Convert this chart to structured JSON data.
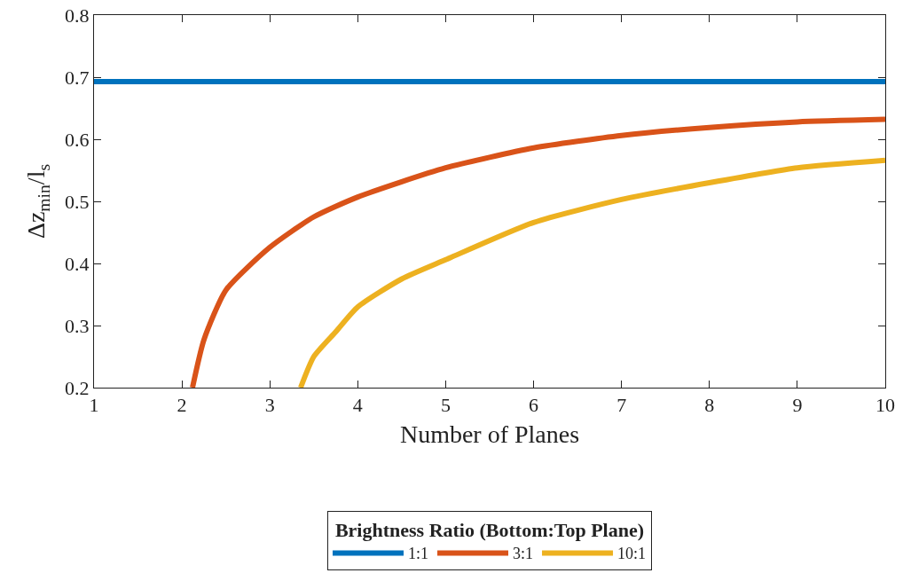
{
  "chart_data": {
    "type": "line",
    "xlabel": "Number of Planes",
    "ylabel": "Δz$_{min}$/l$_{s}$",
    "legend_title": "Brightness Ratio (Bottom:Top Plane)",
    "legend": "bottom",
    "grid": false,
    "marker": "none",
    "line_style": "solid",
    "xlim": [
      1,
      10
    ],
    "xticks": [
      1,
      2,
      3,
      4,
      5,
      6,
      7,
      8,
      9,
      10
    ],
    "ylim": [
      0.2,
      0.8
    ],
    "yticks": [
      0.2,
      0.3,
      0.4,
      0.5,
      0.6,
      0.7,
      0.8
    ],
    "series": [
      {
        "name": "1:1",
        "color": "#0072bd",
        "x": [
          1,
          10
        ],
        "values": [
          0.693,
          0.693
        ]
      },
      {
        "name": "3:1",
        "color": "#d95319",
        "x": [
          2.12,
          2.25,
          2.5,
          3,
          3.5,
          4,
          5,
          6,
          7,
          8,
          9,
          10
        ],
        "values": [
          0.2,
          0.277,
          0.357,
          0.426,
          0.475,
          0.507,
          0.554,
          0.586,
          0.606,
          0.619,
          0.628,
          0.632
        ]
      },
      {
        "name": "10:1",
        "color": "#edb120",
        "x": [
          3.35,
          3.5,
          3.75,
          4,
          4.5,
          5,
          6,
          7,
          8,
          9,
          10
        ],
        "values": [
          0.2,
          0.25,
          0.29,
          0.33,
          0.375,
          0.406,
          0.466,
          0.503,
          0.53,
          0.554,
          0.566
        ]
      }
    ]
  }
}
